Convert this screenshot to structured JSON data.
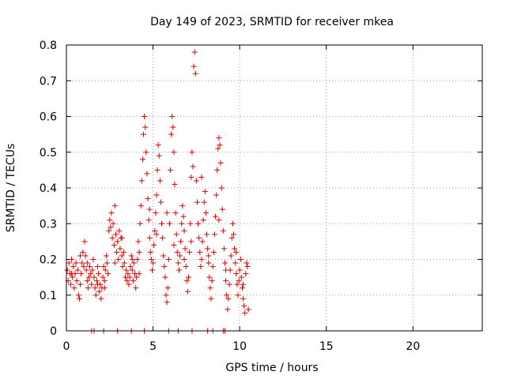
{
  "chart_data": {
    "type": "scatter",
    "title": "Day 149 of 2023, SRMTID for receiver mkea",
    "xlabel": "GPS time / hours",
    "ylabel": "SRMTID / TECUs",
    "xlim": [
      0,
      24
    ],
    "ylim": [
      0,
      0.8
    ],
    "x_ticks": [
      "0",
      "5",
      "10",
      "15",
      "20"
    ],
    "y_ticks": [
      "0",
      "0.1",
      "0.2",
      "0.3",
      "0.4",
      "0.5",
      "0.6",
      "0.7",
      "0.8"
    ],
    "grid": true,
    "marker": "plus",
    "colors": {
      "series": "#e00000",
      "grid": "#a0a0a0",
      "axes": "#000000"
    },
    "series": [
      {
        "points": [
          [
            0.05,
            0.17
          ],
          [
            0.1,
            0.14
          ],
          [
            0.15,
            0.19
          ],
          [
            0.2,
            0.16
          ],
          [
            0.25,
            0.13
          ],
          [
            0.3,
            0.2
          ],
          [
            0.35,
            0.15
          ],
          [
            0.4,
            0.18
          ],
          [
            0.45,
            0.12
          ],
          [
            0.5,
            0.16
          ],
          [
            0.55,
            0.19
          ],
          [
            0.6,
            0.14
          ],
          [
            0.65,
            0.17
          ],
          [
            0.7,
            0.1
          ],
          [
            0.75,
            0.09
          ],
          [
            0.8,
            0.13
          ],
          [
            0.85,
            0.16
          ],
          [
            0.9,
            0.19
          ],
          [
            0.95,
            0.22
          ],
          [
            1.0,
            0.18
          ],
          [
            1.05,
            0.25
          ],
          [
            1.1,
            0.21
          ],
          [
            1.15,
            0.17
          ],
          [
            1.2,
            0.14
          ],
          [
            1.25,
            0.12
          ],
          [
            1.3,
            0.15
          ],
          [
            1.35,
            0.18
          ],
          [
            1.4,
            0.16
          ],
          [
            1.45,
            0.13
          ],
          [
            1.5,
            0.17
          ],
          [
            1.55,
            0.2
          ],
          [
            1.6,
            0.15
          ],
          [
            1.65,
            0.12
          ],
          [
            1.7,
            0.1
          ],
          [
            1.75,
            0.14
          ],
          [
            1.8,
            0.18
          ],
          [
            1.85,
            0.16
          ],
          [
            1.9,
            0.11
          ],
          [
            1.95,
            0.13
          ],
          [
            2.0,
            0.09
          ],
          [
            2.05,
            0.12
          ],
          [
            2.1,
            0.15
          ],
          [
            2.15,
            0.18
          ],
          [
            2.2,
            0.14
          ],
          [
            2.25,
            0.17
          ],
          [
            2.3,
            0.21
          ],
          [
            2.35,
            0.19
          ],
          [
            2.4,
            0.16
          ],
          [
            2.45,
            0.28
          ],
          [
            2.5,
            0.31
          ],
          [
            2.55,
            0.29
          ],
          [
            2.6,
            0.33
          ],
          [
            2.65,
            0.26
          ],
          [
            2.7,
            0.3
          ],
          [
            2.75,
            0.24
          ],
          [
            2.8,
            0.35
          ],
          [
            2.85,
            0.27
          ],
          [
            2.9,
            0.22
          ],
          [
            2.95,
            0.25
          ],
          [
            3.0,
            0.2
          ],
          [
            3.05,
            0.28
          ],
          [
            3.1,
            0.23
          ],
          [
            3.15,
            0.26
          ],
          [
            3.2,
            0.21
          ],
          [
            3.25,
            0.18
          ],
          [
            3.3,
            0.22
          ],
          [
            3.35,
            0.19
          ],
          [
            3.4,
            0.15
          ],
          [
            3.45,
            0.17
          ],
          [
            3.5,
            0.14
          ],
          [
            3.55,
            0.16
          ],
          [
            3.6,
            0.13
          ],
          [
            3.65,
            0.15
          ],
          [
            3.7,
            0.18
          ],
          [
            3.75,
            0.21
          ],
          [
            3.8,
            0.17
          ],
          [
            3.85,
            0.14
          ],
          [
            3.9,
            0.19
          ],
          [
            3.95,
            0.16
          ],
          [
            4.0,
            0.12
          ],
          [
            4.05,
            0.15
          ],
          [
            4.1,
            0.2
          ],
          [
            4.15,
            0.25
          ],
          [
            4.2,
            0.22
          ],
          [
            4.25,
            0.3
          ],
          [
            4.3,
            0.35
          ],
          [
            4.35,
            0.42
          ],
          [
            4.4,
            0.48
          ],
          [
            4.45,
            0.55
          ],
          [
            4.5,
            0.6
          ],
          [
            4.55,
            0.57
          ],
          [
            4.6,
            0.5
          ],
          [
            4.65,
            0.44
          ],
          [
            4.7,
            0.37
          ],
          [
            4.75,
            0.31
          ],
          [
            4.8,
            0.26
          ],
          [
            4.85,
            0.22
          ],
          [
            4.9,
            0.2
          ],
          [
            4.95,
            0.17
          ],
          [
            5.0,
            0.19
          ],
          [
            5.05,
            0.24
          ],
          [
            5.1,
            0.28
          ],
          [
            5.15,
            0.33
          ],
          [
            5.2,
            0.38
          ],
          [
            5.25,
            0.45
          ],
          [
            5.3,
            0.52
          ],
          [
            5.35,
            0.49
          ],
          [
            5.4,
            0.42
          ],
          [
            5.45,
            0.36
          ],
          [
            5.5,
            0.3
          ],
          [
            5.55,
            0.26
          ],
          [
            5.6,
            0.21
          ],
          [
            5.65,
            0.18
          ],
          [
            5.7,
            0.15
          ],
          [
            5.75,
            0.1
          ],
          [
            5.8,
            0.08
          ],
          [
            5.85,
            0.12
          ],
          [
            5.9,
            0.2
          ],
          [
            5.95,
            0.3
          ],
          [
            6.0,
            0.45
          ],
          [
            6.05,
            0.55
          ],
          [
            6.1,
            0.6
          ],
          [
            6.15,
            0.57
          ],
          [
            6.2,
            0.5
          ],
          [
            6.25,
            0.41
          ],
          [
            6.3,
            0.33
          ],
          [
            6.35,
            0.27
          ],
          [
            6.4,
            0.22
          ],
          [
            6.45,
            0.19
          ],
          [
            6.5,
            0.17
          ],
          [
            6.55,
            0.21
          ],
          [
            6.6,
            0.25
          ],
          [
            6.65,
            0.3
          ],
          [
            6.7,
            0.35
          ],
          [
            6.75,
            0.32
          ],
          [
            6.8,
            0.28
          ],
          [
            6.85,
            0.23
          ],
          [
            6.9,
            0.18
          ],
          [
            6.95,
            0.14
          ],
          [
            7.0,
            0.11
          ],
          [
            7.05,
            0.15
          ],
          [
            7.1,
            0.22
          ],
          [
            7.15,
            0.3
          ],
          [
            7.2,
            0.43
          ],
          [
            7.25,
            0.5
          ],
          [
            7.3,
            0.46
          ],
          [
            7.35,
            0.74
          ],
          [
            7.4,
            0.78
          ],
          [
            7.45,
            0.72
          ],
          [
            7.5,
            0.42
          ],
          [
            7.55,
            0.36
          ],
          [
            7.6,
            0.3
          ],
          [
            7.65,
            0.26
          ],
          [
            7.7,
            0.22
          ],
          [
            7.75,
            0.18
          ],
          [
            7.8,
            0.2
          ],
          [
            7.85,
            0.25
          ],
          [
            7.9,
            0.31
          ],
          [
            7.95,
            0.36
          ],
          [
            8.0,
            0.39
          ],
          [
            8.05,
            0.33
          ],
          [
            8.1,
            0.27
          ],
          [
            8.15,
            0.23
          ],
          [
            8.2,
            0.19
          ],
          [
            8.25,
            0.15
          ],
          [
            8.3,
            0.12
          ],
          [
            8.35,
            0.09
          ],
          [
            8.4,
            0.14
          ],
          [
            8.45,
            0.18
          ],
          [
            8.5,
            0.22
          ],
          [
            8.55,
            0.27
          ],
          [
            8.6,
            0.32
          ],
          [
            8.65,
            0.38
          ],
          [
            8.7,
            0.45
          ],
          [
            8.75,
            0.51
          ],
          [
            8.8,
            0.54
          ],
          [
            8.85,
            0.52
          ],
          [
            8.9,
            0.47
          ],
          [
            8.95,
            0.4
          ],
          [
            9.0,
            0.34
          ],
          [
            9.05,
            0.28
          ],
          [
            9.1,
            0.23
          ],
          [
            9.15,
            0.19
          ],
          [
            9.2,
            0.14
          ],
          [
            9.25,
            0.1
          ],
          [
            9.3,
            0.06
          ],
          [
            9.35,
            0.09
          ],
          [
            9.4,
            0.13
          ],
          [
            9.45,
            0.17
          ],
          [
            9.5,
            0.21
          ],
          [
            9.55,
            0.26
          ],
          [
            9.6,
            0.3
          ],
          [
            9.65,
            0.27
          ],
          [
            9.7,
            0.23
          ],
          [
            9.75,
            0.19
          ],
          [
            9.8,
            0.16
          ],
          [
            9.85,
            0.13
          ],
          [
            9.9,
            0.1
          ],
          [
            9.95,
            0.14
          ],
          [
            10.0,
            0.17
          ],
          [
            10.05,
            0.2
          ],
          [
            10.1,
            0.15
          ],
          [
            10.15,
            0.12
          ],
          [
            10.2,
            0.09
          ],
          [
            10.25,
            0.07
          ],
          [
            10.3,
            0.05
          ],
          [
            10.35,
            0.16
          ],
          [
            10.4,
            0.19
          ],
          [
            10.45,
            0.18
          ],
          [
            10.5,
            0.06
          ],
          [
            0.3,
            0.16
          ],
          [
            1.2,
            0.19
          ],
          [
            2.2,
            0.12
          ],
          [
            3.2,
            0.26
          ],
          [
            4.2,
            0.16
          ],
          [
            5.2,
            0.27
          ],
          [
            6.2,
            0.24
          ],
          [
            7.2,
            0.25
          ],
          [
            8.2,
            0.21
          ],
          [
            9.2,
            0.17
          ],
          [
            10.2,
            0.13
          ],
          [
            0.8,
            0.21
          ],
          [
            1.8,
            0.13
          ],
          [
            2.8,
            0.19
          ],
          [
            3.8,
            0.2
          ],
          [
            4.8,
            0.34
          ],
          [
            5.8,
            0.33
          ],
          [
            6.8,
            0.2
          ],
          [
            7.8,
            0.43
          ],
          [
            8.8,
            0.31
          ],
          [
            9.8,
            0.22
          ],
          [
            1.45,
            0.0
          ],
          [
            1.6,
            0.0
          ],
          [
            2.15,
            0.0
          ],
          [
            2.95,
            0.0
          ],
          [
            3.75,
            0.0
          ],
          [
            4.5,
            0.0
          ],
          [
            5.9,
            0.0
          ],
          [
            6.45,
            0.0
          ],
          [
            7.25,
            0.0
          ],
          [
            8.15,
            0.0
          ],
          [
            8.45,
            0.0
          ],
          [
            9.05,
            0.0
          ],
          [
            9.15,
            0.0
          ]
        ]
      }
    ]
  }
}
